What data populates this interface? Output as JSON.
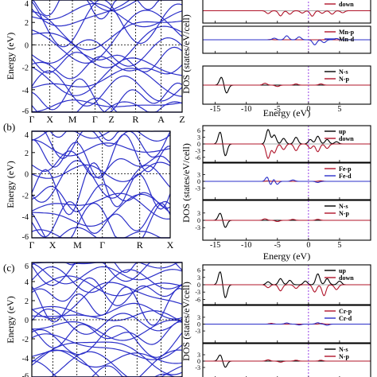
{
  "chart_data": [
    {
      "id": "band_a",
      "type": "line",
      "panel_label": "",
      "ylabel": "Energy (eV)",
      "ylim": [
        -6,
        4
      ],
      "yticks": [
        "-6",
        "-4",
        "-2",
        "0",
        "2",
        "4"
      ],
      "kpath": [
        "Γ",
        "X",
        "M",
        "Γ",
        "Z",
        "R",
        "A",
        "Z"
      ],
      "line_color": "#2b2fc9",
      "fermi_level": 0
    },
    {
      "id": "band_b",
      "type": "line",
      "panel_label": "(b)",
      "ylabel": "Energy (eV)",
      "ylim": [
        -6,
        4
      ],
      "yticks": [
        "-6",
        "-4",
        "-2",
        "0",
        "2",
        "4"
      ],
      "kpath": [
        "Γ",
        "X",
        "M",
        "Γ",
        "R",
        "X"
      ],
      "line_color": "#2b2fc9",
      "fermi_level": 0
    },
    {
      "id": "band_c",
      "type": "line",
      "panel_label": "(c)",
      "ylabel": "Energy (eV)",
      "ylim": [
        -6,
        6
      ],
      "yticks": [
        "-6",
        "-4",
        "-2",
        "0",
        "2",
        "4",
        "6"
      ],
      "kpath": [],
      "line_color": "#2b2fc9",
      "fermi_level": 0
    },
    {
      "id": "dos_a",
      "type": "line",
      "ylabel": "DOS (states/eV/cell)",
      "xlabel": "Energy (eV)",
      "xlim": [
        -17,
        10
      ],
      "xticks": [
        "-15",
        "-10",
        "-5",
        "0",
        "5"
      ],
      "subpanels": [
        {
          "yticks": [],
          "legend": [
            {
              "label": "down",
              "color": "#b0142a"
            }
          ],
          "series": [
            {
              "name": "down",
              "color": "#b0142a",
              "peaks": [
                [
                  -6.5,
                  -2.0
                ],
                [
                  -4.5,
                  -3.6
                ],
                [
                  -3.0,
                  -2.4
                ],
                [
                  -1.0,
                  -1.6
                ],
                [
                  0.6,
                  -3.8
                ],
                [
                  2.2,
                  -1.8
                ],
                [
                  3.8,
                  -2.4
                ],
                [
                  5.5,
                  -1.4
                ]
              ]
            }
          ]
        },
        {
          "yticks": [],
          "legend": [
            {
              "label": "Mn-p",
              "color": "#b0142a"
            },
            {
              "label": "Mn-d",
              "color": "#2b2fc9"
            }
          ],
          "series": [
            {
              "name": "Mn-p",
              "color": "#b0142a",
              "peaks": [
                [
                  -6.0,
                  0.2
                ],
                [
                  3.0,
                  0.25
                ]
              ]
            },
            {
              "name": "Mn-d",
              "color": "#2b2fc9",
              "peaks": [
                [
                  -5.5,
                  1.0
                ],
                [
                  -3.5,
                  2.5
                ],
                [
                  -1.5,
                  1.8
                ],
                [
                  1.0,
                  -3.2
                ],
                [
                  2.5,
                  -1.8
                ],
                [
                  4.5,
                  0.8
                ]
              ]
            }
          ]
        },
        {
          "yticks": [],
          "legend": [
            {
              "label": "N-s",
              "color": "#000000"
            },
            {
              "label": "N-p",
              "color": "#b0142a"
            }
          ],
          "series": [
            {
              "name": "N-s",
              "color": "#000000",
              "peaks": [
                [
                  -14.0,
                  3.5
                ],
                [
                  -13.2,
                  -3.5
                ]
              ]
            },
            {
              "name": "N-p",
              "color": "#b0142a",
              "peaks": [
                [
                  -7.0,
                  0.8
                ],
                [
                  -5.0,
                  -0.6
                ],
                [
                  -2.0,
                  0.5
                ],
                [
                  2.0,
                  0.5
                ]
              ]
            }
          ]
        }
      ]
    },
    {
      "id": "dos_b",
      "type": "line",
      "ylabel": "DOS (states/eV/cell)",
      "xlabel": "Energy (eV)",
      "xlim": [
        -17,
        10
      ],
      "xticks": [
        "-15",
        "-10",
        "-5",
        "0",
        "5"
      ],
      "subpanels": [
        {
          "yticks": [
            "6",
            "3",
            "0",
            "-3",
            "-6"
          ],
          "legend": [
            {
              "label": "up",
              "color": "#000000"
            },
            {
              "label": "down",
              "color": "#b0142a"
            }
          ],
          "series": [
            {
              "name": "up",
              "color": "#000000",
              "peaks": [
                [
                  -14.2,
                  5.5
                ],
                [
                  -13.4,
                  -5.5
                ],
                [
                  -6.5,
                  6.5
                ],
                [
                  -5.5,
                  4.0
                ],
                [
                  -4.0,
                  2.5
                ],
                [
                  -2.0,
                  3.0
                ],
                [
                  0.3,
                  2.0
                ],
                [
                  1.5,
                  3.5
                ],
                [
                  3.0,
                  2.0
                ],
                [
                  4.5,
                  1.0
                ]
              ]
            },
            {
              "name": "down",
              "color": "#b0142a",
              "peaks": [
                [
                  -6.5,
                  -6.5
                ],
                [
                  -5.5,
                  -4.0
                ],
                [
                  -4.0,
                  -2.5
                ],
                [
                  -2.0,
                  -3.0
                ],
                [
                  0.3,
                  -2.0
                ],
                [
                  1.5,
                  -3.5
                ],
                [
                  3.0,
                  -2.0
                ]
              ]
            }
          ]
        },
        {
          "yticks": [
            "3",
            "0",
            "-3"
          ],
          "legend": [
            {
              "label": "Fe-p",
              "color": "#b0142a"
            },
            {
              "label": "Fe-d",
              "color": "#2b2fc9"
            }
          ],
          "series": [
            {
              "name": "Fe-p",
              "color": "#b0142a",
              "peaks": [
                [
                  -6.5,
                  0.2
                ],
                [
                  2.0,
                  0.25
                ]
              ]
            },
            {
              "name": "Fe-d",
              "color": "#2b2fc9",
              "peaks": [
                [
                  -6.5,
                  3.5
                ],
                [
                  -5.5,
                  2.5
                ],
                [
                  -6.2,
                  -3.5
                ],
                [
                  -5.2,
                  -2.5
                ],
                [
                  -2.5,
                  0.6
                ],
                [
                  1.5,
                  -0.5
                ]
              ]
            }
          ]
        },
        {
          "yticks": [
            "3",
            "0",
            "-3"
          ],
          "legend": [
            {
              "label": "N-s",
              "color": "#000000"
            },
            {
              "label": "N-p",
              "color": "#b0142a"
            }
          ],
          "series": [
            {
              "name": "N-s",
              "color": "#000000",
              "peaks": [
                [
                  -14.2,
                  3.0
                ],
                [
                  -13.4,
                  -3.0
                ]
              ]
            },
            {
              "name": "N-p",
              "color": "#b0142a",
              "peaks": [
                [
                  -7.0,
                  0.6
                ],
                [
                  -5.0,
                  -0.5
                ],
                [
                  -2.5,
                  0.4
                ],
                [
                  1.5,
                  0.4
                ]
              ]
            }
          ]
        }
      ]
    },
    {
      "id": "dos_c",
      "type": "line",
      "ylabel": "DOS (states/eV/cell)",
      "xlabel": "",
      "xlim": [
        -17,
        10
      ],
      "xticks": [],
      "subpanels": [
        {
          "yticks": [
            "6",
            "3",
            "0",
            "-3",
            "-6"
          ],
          "legend": [
            {
              "label": "up",
              "color": "#000000"
            },
            {
              "label": "down",
              "color": "#b0142a"
            }
          ],
          "series": [
            {
              "name": "up",
              "color": "#000000",
              "peaks": [
                [
                  -14.2,
                  5.5
                ],
                [
                  -13.4,
                  -5.5
                ],
                [
                  -6.5,
                  1.2
                ],
                [
                  -4.5,
                  2.5
                ],
                [
                  -3.0,
                  1.8
                ],
                [
                  -0.5,
                  1.5
                ],
                [
                  1.5,
                  4.5
                ],
                [
                  3.0,
                  2.5
                ],
                [
                  5.0,
                  1.5
                ]
              ]
            },
            {
              "name": "down",
              "color": "#b0142a",
              "peaks": [
                [
                  -6.5,
                  -1.2
                ],
                [
                  -4.5,
                  -2.5
                ],
                [
                  -2.0,
                  -1.5
                ],
                [
                  1.0,
                  -3.0
                ],
                [
                  2.5,
                  -4.5
                ],
                [
                  4.5,
                  -2.0
                ]
              ]
            }
          ]
        },
        {
          "yticks": [
            "3",
            "0",
            "-3"
          ],
          "legend": [
            {
              "label": "Cr-p",
              "color": "#b0142a"
            },
            {
              "label": "Cr-d",
              "color": "#2b2fc9"
            }
          ],
          "series": [
            {
              "name": "Cr-p",
              "color": "#b0142a",
              "peaks": [
                [
                  -6.0,
                  0.3
                ],
                [
                  2.0,
                  0.3
                ]
              ]
            },
            {
              "name": "Cr-d",
              "color": "#2b2fc9",
              "peaks": [
                [
                  -3.5,
                  0.5
                ],
                [
                  -1.5,
                  -0.4
                ],
                [
                  1.5,
                  0.6
                ],
                [
                  3.0,
                  -0.5
                ]
              ]
            }
          ]
        },
        {
          "yticks": [
            "3",
            "0",
            "-3"
          ],
          "legend": [
            {
              "label": "N-s",
              "color": "#000000"
            },
            {
              "label": "N-p",
              "color": "#b0142a"
            }
          ],
          "series": [
            {
              "name": "N-s",
              "color": "#000000",
              "peaks": [
                [
                  -14.2,
                  3.0
                ],
                [
                  -13.4,
                  -3.0
                ]
              ]
            },
            {
              "name": "N-p",
              "color": "#b0142a",
              "peaks": [
                [
                  -6.5,
                  0.6
                ],
                [
                  -4.5,
                  -0.5
                ],
                [
                  -2.0,
                  0.4
                ],
                [
                  2.0,
                  0.4
                ]
              ]
            }
          ]
        }
      ]
    }
  ]
}
